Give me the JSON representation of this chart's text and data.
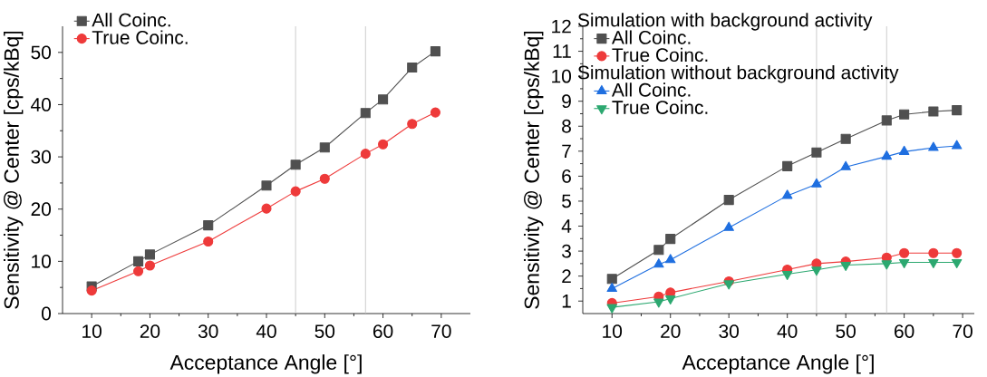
{
  "chart_data": [
    {
      "type": "line",
      "xlabel": "Acceptance Angle [°]",
      "ylabel": "Sensitivity @ Center [cps/kBq]",
      "x": [
        10,
        18,
        20,
        30,
        40,
        45,
        50,
        57,
        60,
        65,
        69
      ],
      "xlim": [
        5,
        75
      ],
      "xticks": [
        10,
        20,
        30,
        40,
        50,
        60,
        70
      ],
      "ylim": [
        0,
        55
      ],
      "yticks": [
        0,
        10,
        20,
        30,
        40,
        50
      ],
      "grid": false,
      "legend": "top left",
      "ref_lines": [
        {
          "axis": "x",
          "value": 45,
          "color": "#c0c0c0"
        },
        {
          "axis": "x",
          "value": 57,
          "color": "#c0c0c0"
        }
      ],
      "series": [
        {
          "name": "All Coinc.",
          "color": "#505050",
          "marker": "square",
          "values": [
            5.2,
            10.0,
            11.3,
            16.9,
            24.5,
            28.5,
            31.8,
            38.4,
            41.0,
            47.1,
            50.2
          ]
        },
        {
          "name": "True Coinc.",
          "color": "#ee3a3a",
          "marker": "circle",
          "values": [
            4.4,
            8.1,
            9.2,
            13.8,
            20.1,
            23.4,
            25.8,
            30.6,
            32.4,
            36.3,
            38.5
          ]
        }
      ]
    },
    {
      "type": "line",
      "xlabel": "Acceptance Angle [°]",
      "ylabel": "Sensitivity @ Center [cps/kBq]",
      "x": [
        10,
        18,
        20,
        30,
        40,
        45,
        50,
        57,
        60,
        65,
        69
      ],
      "xlim": [
        5,
        72
      ],
      "xticks": [
        10,
        20,
        30,
        40,
        50,
        60,
        70
      ],
      "ylim": [
        0.5,
        12
      ],
      "yticks": [
        1,
        2,
        3,
        4,
        5,
        6,
        7,
        8,
        9,
        10,
        11,
        12
      ],
      "grid": false,
      "legend": "top left",
      "annotations": [
        "Simulation with background activity",
        "Simulation without background activity"
      ],
      "ref_lines": [
        {
          "axis": "x",
          "value": 45,
          "color": "#c0c0c0"
        },
        {
          "axis": "x",
          "value": 57,
          "color": "#c0c0c0"
        }
      ],
      "series": [
        {
          "name": "All Coinc.",
          "color": "#505050",
          "marker": "square",
          "values": [
            1.89,
            3.05,
            3.49,
            5.05,
            6.4,
            6.95,
            7.49,
            8.23,
            8.47,
            8.59,
            8.64
          ]
        },
        {
          "name": "True Coinc.",
          "color": "#ee3a3a",
          "marker": "circle",
          "values": [
            0.92,
            1.18,
            1.34,
            1.79,
            2.26,
            2.5,
            2.58,
            2.74,
            2.92,
            2.92,
            2.92
          ]
        },
        {
          "name": "All Coinc.",
          "color": "#1f6fe0",
          "marker": "triangle",
          "values": [
            1.5,
            2.47,
            2.65,
            3.94,
            5.22,
            5.68,
            6.37,
            6.79,
            6.98,
            7.14,
            7.21
          ]
        },
        {
          "name": "True Coinc.",
          "color": "#2ca870",
          "marker": "triangle-down",
          "values": [
            0.75,
            0.97,
            1.1,
            1.7,
            2.08,
            2.25,
            2.44,
            2.5,
            2.55,
            2.55,
            2.55
          ]
        }
      ]
    }
  ]
}
